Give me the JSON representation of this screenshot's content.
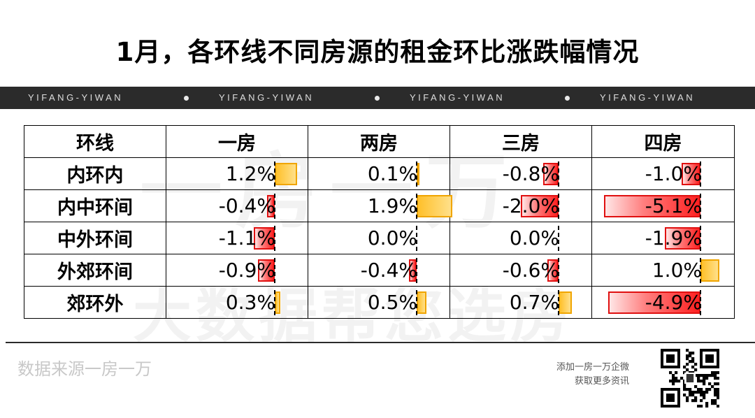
{
  "title": "1月，各环线不同房源的租金环比涨跌幅情况",
  "banner_text": "YIFANG-YIWAN",
  "watermark": {
    "line1": "一房一万",
    "line2": "大数据帮您选房"
  },
  "source": "数据来源一房一万",
  "promo_line1": "添加一房一万企微",
  "promo_line2": "获取更多资讯",
  "colors": {
    "negative": "#ff2020",
    "positive": "#ffc02a",
    "banner": "#2b2b2b"
  },
  "chart_data": {
    "type": "table",
    "header": "环线",
    "columns": [
      "一房",
      "两房",
      "三房",
      "四房"
    ],
    "rows": [
      {
        "label": "内环内",
        "values": [
          1.2,
          0.1,
          -0.8,
          -1.0
        ],
        "display": [
          "1.2%",
          "0.1%",
          "-0.8%",
          "-1.0%"
        ]
      },
      {
        "label": "内中环间",
        "values": [
          -0.4,
          1.9,
          -2.0,
          -5.1
        ],
        "display": [
          "-0.4%",
          "1.9%",
          "-2.0%",
          "-5.1%"
        ]
      },
      {
        "label": "中外环间",
        "values": [
          -1.1,
          0.0,
          0.0,
          -1.9
        ],
        "display": [
          "-1.1%",
          "0.0%",
          "0.0%",
          "-1.9%"
        ]
      },
      {
        "label": "外郊环间",
        "values": [
          -0.9,
          -0.4,
          -0.6,
          1.0
        ],
        "display": [
          "-0.9%",
          "-0.4%",
          "-0.6%",
          "1.0%"
        ]
      },
      {
        "label": "郊环外",
        "values": [
          0.3,
          0.5,
          0.7,
          -4.9
        ],
        "display": [
          "0.3%",
          "0.5%",
          "0.7%",
          "-4.9%"
        ]
      }
    ]
  }
}
